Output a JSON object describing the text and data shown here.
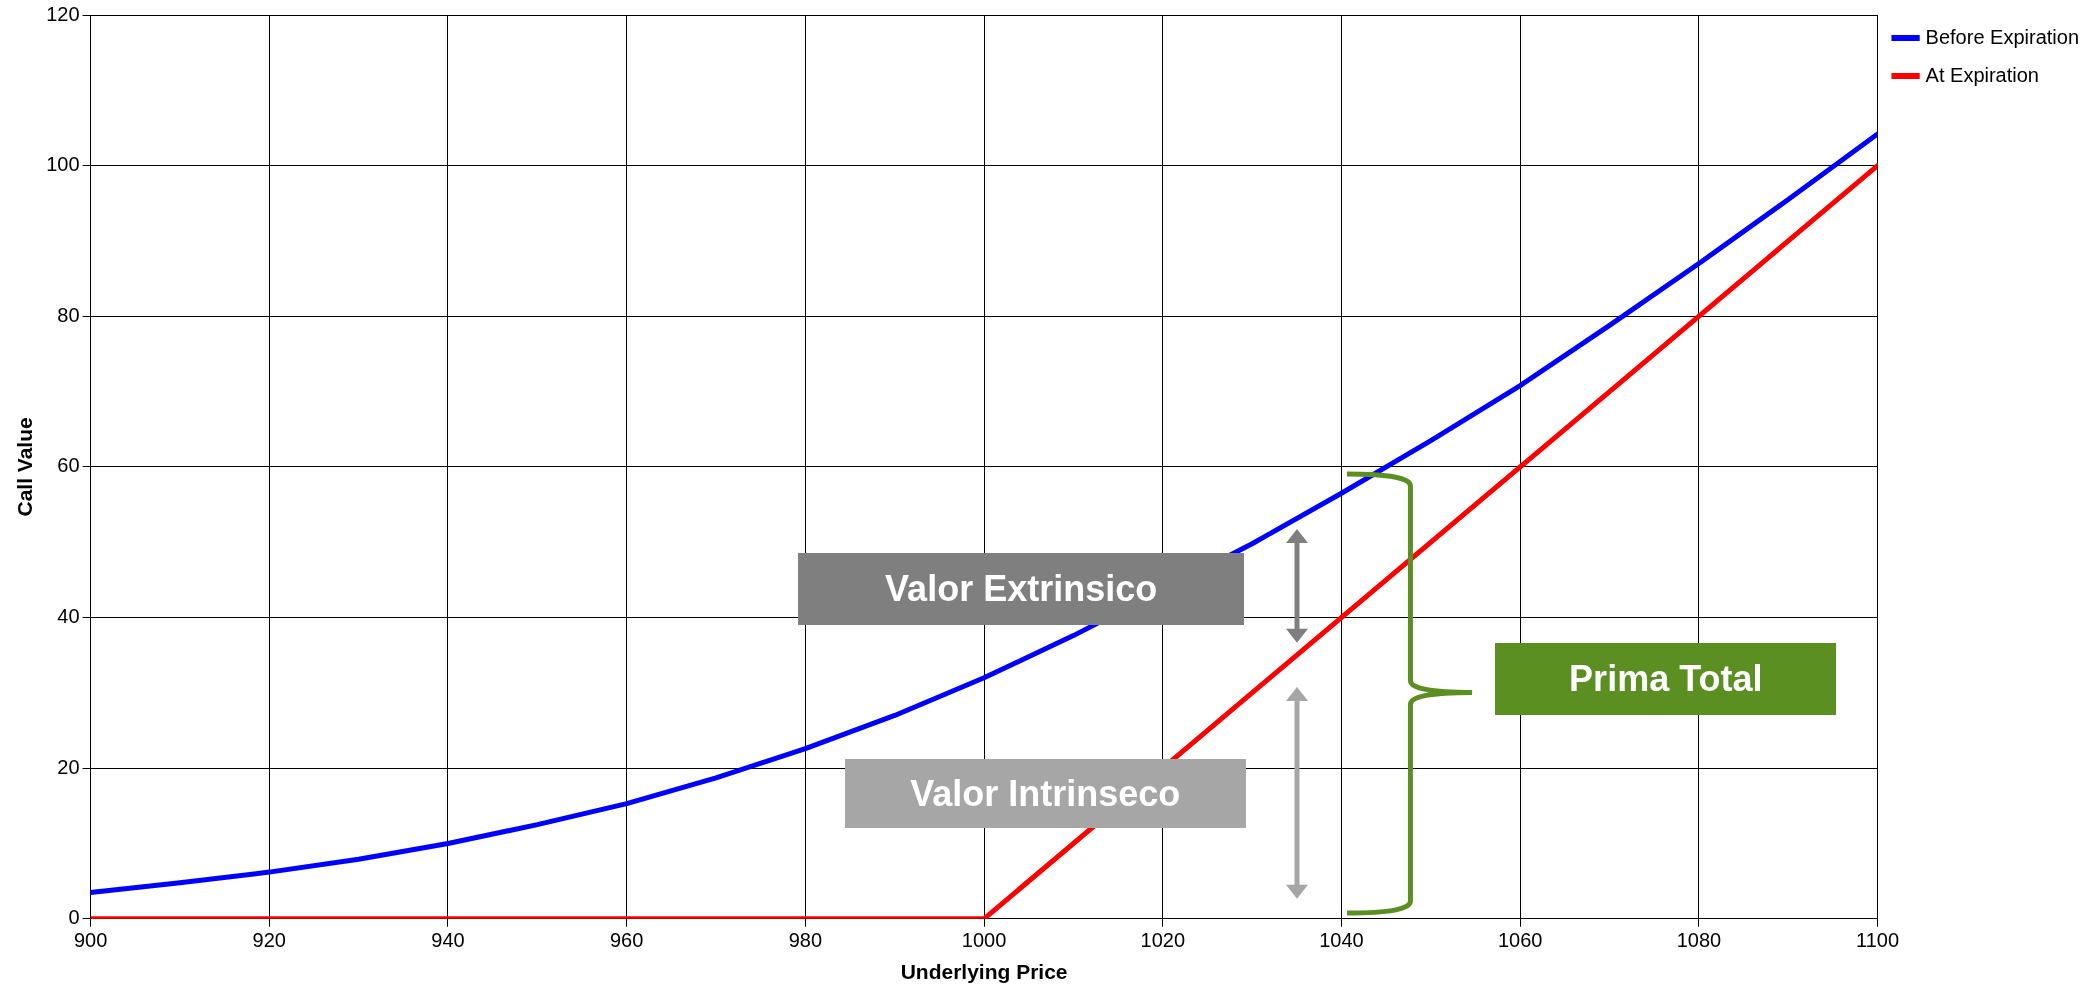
{
  "chart_data": {
    "type": "line",
    "xlabel": "Underlying Price",
    "ylabel": "Call Value",
    "xlim": [
      900,
      1100
    ],
    "xticks": [
      900,
      920,
      940,
      960,
      980,
      1000,
      1020,
      1040,
      1060,
      1080,
      1100
    ],
    "ylim": [
      0,
      120
    ],
    "yticks": [
      0,
      20,
      40,
      60,
      80,
      100,
      120
    ],
    "grid": true,
    "legend": "top right",
    "marker": "none",
    "line_style": "solid",
    "series": [
      {
        "name": "Before Expiration",
        "color": "#0000ff",
        "x": [
          900,
          910,
          920,
          930,
          940,
          950,
          960,
          970,
          980,
          990,
          1000,
          1010,
          1020,
          1030,
          1040,
          1050,
          1060,
          1070,
          1080,
          1090,
          1100
        ],
        "values": [
          3.5,
          4.8,
          6.2,
          7.9,
          10,
          12.5,
          15.3,
          18.7,
          22.6,
          27,
          32,
          37.6,
          null,
          49.8,
          56.5,
          63.5,
          70.8,
          78.8,
          87,
          95.5,
          104.2
        ]
      },
      {
        "name": "At Expiration",
        "color": "#ff0000",
        "x": [
          900,
          1000,
          1100
        ],
        "values": [
          0,
          0,
          100
        ]
      }
    ],
    "annotations": [
      "Valor Extrinsico",
      "Valor Intrinseco",
      "Prima Total"
    ]
  }
}
